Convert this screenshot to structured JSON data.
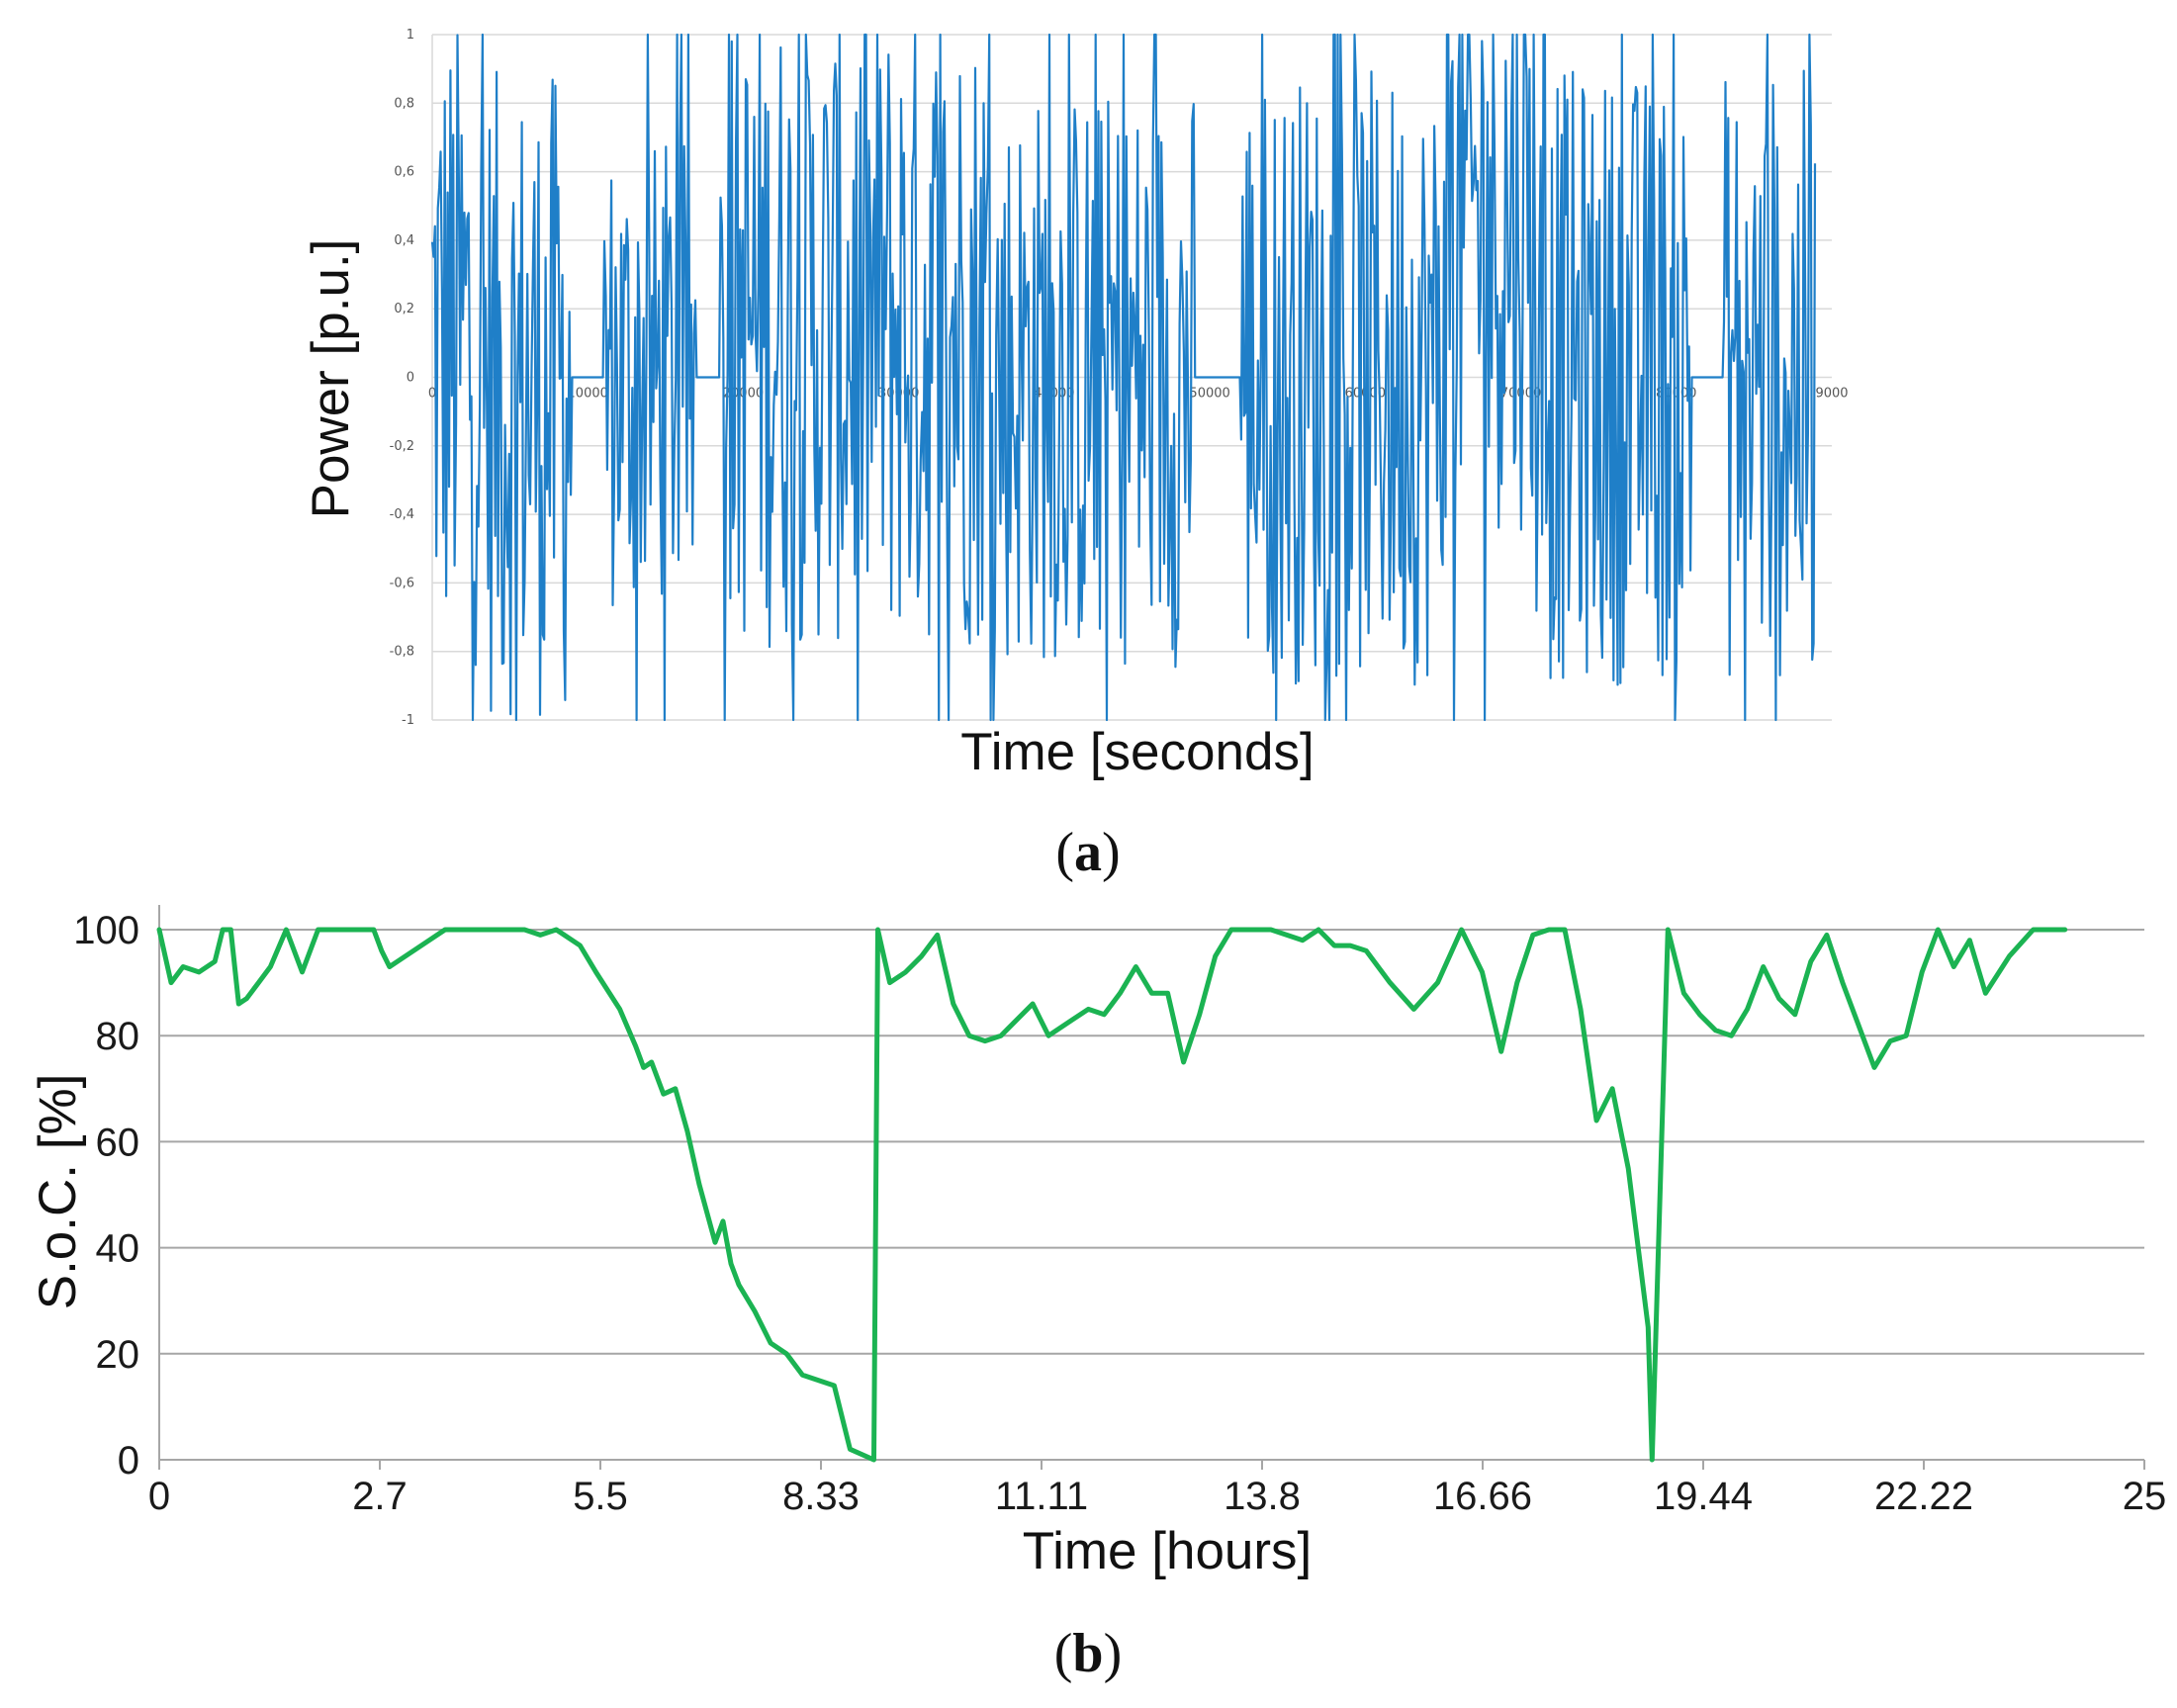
{
  "chart_data": [
    {
      "panel": "a",
      "type": "line",
      "xlabel": "Time [seconds]",
      "ylabel": "Power [p.u.]",
      "xlim": [
        0,
        90000
      ],
      "ylim": [
        -1,
        1
      ],
      "x_ticks": [
        "0",
        "10000",
        "20000",
        "30000",
        "40000",
        "50000",
        "60000",
        "70000",
        "80000",
        "9000"
      ],
      "y_ticks": [
        "-1",
        "-0,8",
        "-0,6",
        "-0,4",
        "-0,2",
        "0",
        "0,2",
        "0,4",
        "0,6",
        "0,8",
        "1"
      ],
      "grid": "horizontal",
      "color": "#1f7fc8",
      "series": [
        {
          "name": "Power",
          "x_end": 89000,
          "segments": [
            {
              "from": 0,
              "to": 3000,
              "amp": 0.95,
              "bias": 0.1
            },
            {
              "from": 3000,
              "to": 9000,
              "amp": 0.95,
              "bias": -0.05
            },
            {
              "from": 9000,
              "to": 11000,
              "amp": 0.05,
              "bias": 0
            },
            {
              "from": 11000,
              "to": 17000,
              "amp": 0.7,
              "bias": 0
            },
            {
              "from": 17000,
              "to": 18500,
              "amp": 0.05,
              "bias": 0
            },
            {
              "from": 18500,
              "to": 36000,
              "amp": 0.95,
              "bias": 0.15
            },
            {
              "from": 36000,
              "to": 49000,
              "amp": 0.85,
              "bias": 0
            },
            {
              "from": 49000,
              "to": 52000,
              "amp": 0.05,
              "bias": 0
            },
            {
              "from": 52000,
              "to": 65000,
              "amp": 0.9,
              "bias": 0
            },
            {
              "from": 65000,
              "to": 71000,
              "amp": 0.9,
              "bias": 0.45
            },
            {
              "from": 71000,
              "to": 81000,
              "amp": 0.9,
              "bias": 0
            },
            {
              "from": 81000,
              "to": 83000,
              "amp": 0.05,
              "bias": 0
            },
            {
              "from": 83000,
              "to": 89000,
              "amp": 0.9,
              "bias": 0
            }
          ]
        }
      ],
      "panel_label": "a"
    },
    {
      "panel": "b",
      "type": "line",
      "xlabel": "Time [hours]",
      "ylabel": "S.o.C. [%]",
      "xlim": [
        0,
        25
      ],
      "ylim": [
        0,
        100
      ],
      "x_ticks": [
        "0",
        "2.7",
        "5.5",
        "8.33",
        "11.11",
        "13.8",
        "16.66",
        "19.44",
        "22.22",
        "25"
      ],
      "y_ticks": [
        "0",
        "20",
        "40",
        "60",
        "80",
        "100"
      ],
      "grid": "horizontal",
      "color": "#1bb352",
      "series": [
        {
          "name": "S.o.C.",
          "x": [
            0,
            0.15,
            0.3,
            0.5,
            0.7,
            0.8,
            0.9,
            1.0,
            1.1,
            1.25,
            1.4,
            1.6,
            1.8,
            2.0,
            2.2,
            2.4,
            2.6,
            2.7,
            2.8,
            2.9,
            3.0,
            3.2,
            3.4,
            3.6,
            3.8,
            4.0,
            4.2,
            4.4,
            4.6,
            4.8,
            5.0,
            5.3,
            5.5,
            5.8,
            6.0,
            6.1,
            6.2,
            6.35,
            6.5,
            6.65,
            6.8,
            7.0,
            7.1,
            7.2,
            7.3,
            7.5,
            7.7,
            7.9,
            8.1,
            8.3,
            8.5,
            8.6,
            8.7,
            9.0,
            9.05,
            9.2,
            9.4,
            9.6,
            9.8,
            10.0,
            10.2,
            10.4,
            10.6,
            10.8,
            11.0,
            11.2,
            11.5,
            11.7,
            11.9,
            12.1,
            12.3,
            12.5,
            12.7,
            12.9,
            13.1,
            13.3,
            13.5,
            13.8,
            14.0,
            14.2,
            14.4,
            14.6,
            14.8,
            15.0,
            15.2,
            15.5,
            15.8,
            16.1,
            16.4,
            16.66,
            16.9,
            17.1,
            17.3,
            17.5,
            17.7,
            17.9,
            18.1,
            18.3,
            18.5,
            18.75,
            18.8,
            19.0,
            19.2,
            19.4,
            19.6,
            19.8,
            20.0,
            20.2,
            20.4,
            20.6,
            20.8,
            21.0,
            21.2,
            21.4,
            21.6,
            21.8,
            22.0,
            22.2,
            22.4,
            22.6,
            22.8,
            23.0,
            23.3,
            23.6,
            24.0
          ],
          "y": [
            100,
            90,
            93,
            92,
            94,
            100,
            100,
            86,
            87,
            90,
            93,
            100,
            92,
            100,
            100,
            100,
            100,
            100,
            96,
            93,
            94,
            96,
            98,
            100,
            100,
            100,
            100,
            100,
            100,
            99,
            100,
            97,
            92,
            85,
            78,
            74,
            75,
            69,
            70,
            62,
            52,
            41,
            45,
            37,
            33,
            28,
            22,
            20,
            16,
            15,
            14,
            8,
            2,
            0,
            100,
            90,
            92,
            95,
            99,
            86,
            80,
            79,
            80,
            83,
            86,
            80,
            83,
            85,
            84,
            88,
            93,
            88,
            88,
            75,
            84,
            95,
            100,
            100,
            100,
            99,
            98,
            100,
            97,
            97,
            96,
            90,
            85,
            90,
            100,
            92,
            77,
            90,
            99,
            100,
            100,
            85,
            64,
            70,
            55,
            25,
            0,
            100,
            88,
            84,
            81,
            80,
            85,
            93,
            87,
            84,
            94,
            99,
            90,
            82,
            74,
            79,
            80,
            92,
            100,
            93,
            98,
            88,
            95,
            100,
            100
          ],
          "annotations": []
        }
      ],
      "panel_label": "b"
    }
  ]
}
